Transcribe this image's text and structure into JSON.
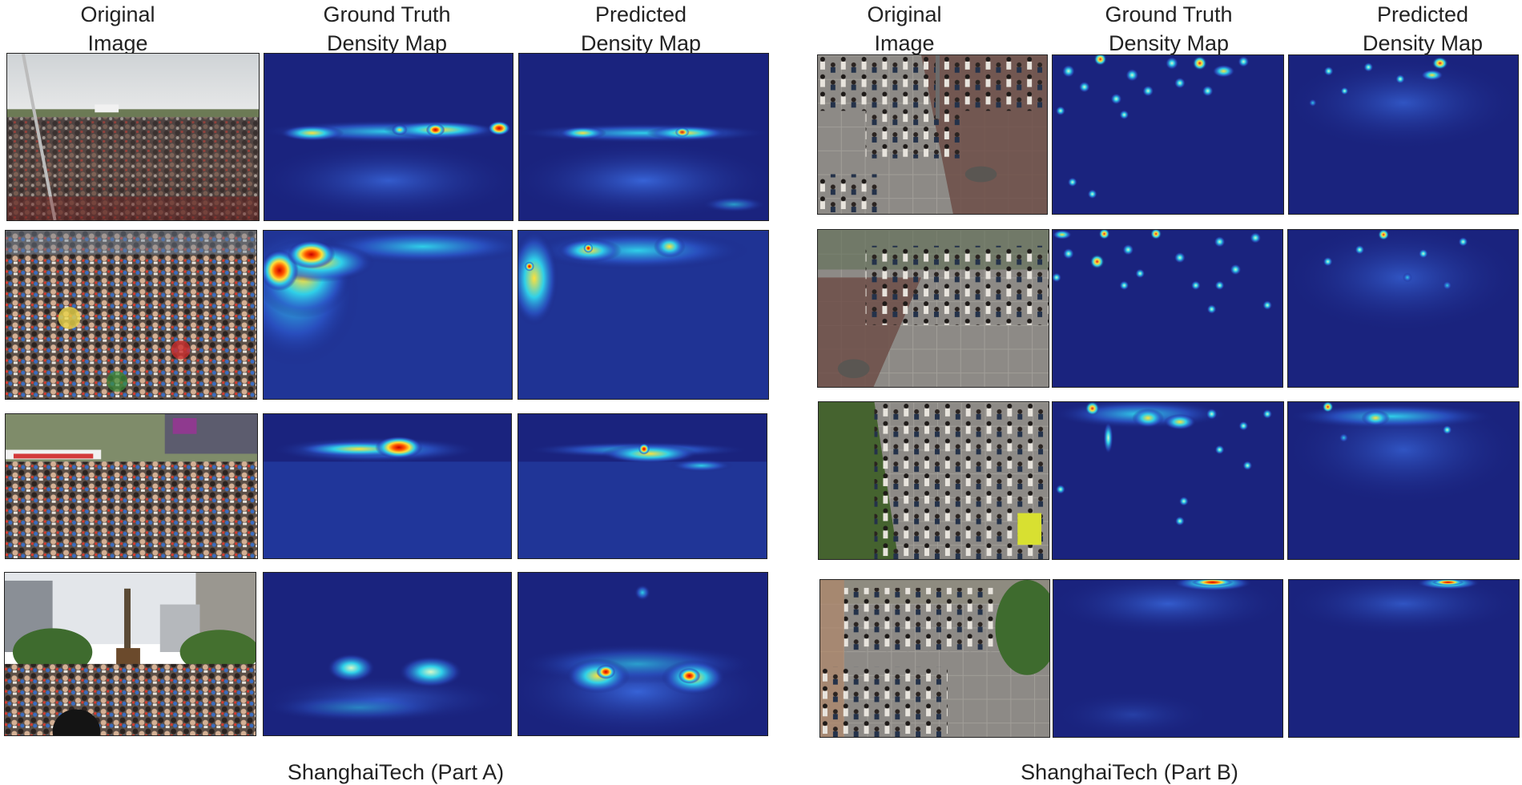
{
  "headers": {
    "original": "Original\nImage",
    "ground_truth": "Ground Truth\nDensity Map",
    "predicted": "Predicted\nDensity Map"
  },
  "captions": {
    "part_a": "ShanghaiTech (Part A)",
    "part_b": "ShanghaiTech (Part B)"
  },
  "colors": {
    "map_background": "#1a237e",
    "low_density": "#2b55c8",
    "mid_density": "#2fd0e8",
    "high_density": "#ffe03a",
    "peak_density": "#e21b1b"
  },
  "images": [
    "crowd-photo",
    "gt-density-map",
    "predicted-density-map"
  ]
}
